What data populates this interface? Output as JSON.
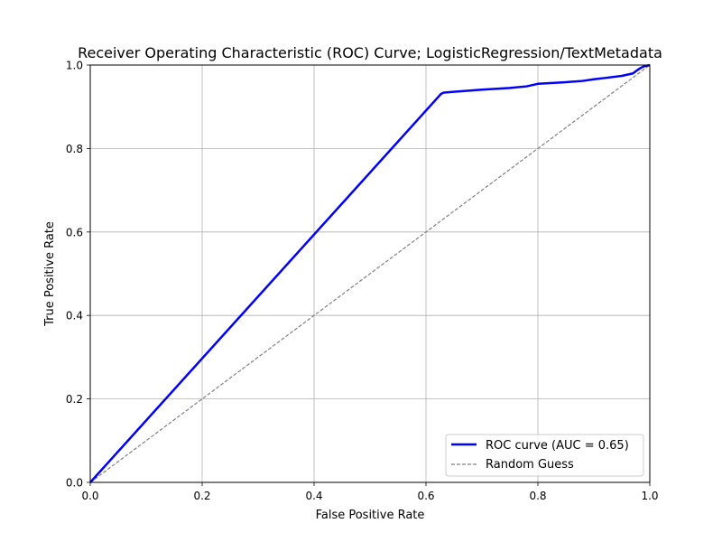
{
  "chart_data": {
    "type": "line",
    "title": "Receiver Operating Characteristic (ROC) Curve; LogisticRegression/TextMetadata",
    "xlabel": "False Positive Rate",
    "ylabel": "True Positive Rate",
    "xlim": [
      0.0,
      1.0
    ],
    "ylim": [
      0.0,
      1.0
    ],
    "xticks": [
      "0.0",
      "0.2",
      "0.4",
      "0.6",
      "0.8",
      "1.0"
    ],
    "yticks": [
      "0.0",
      "0.2",
      "0.4",
      "0.6",
      "0.8",
      "1.0"
    ],
    "grid": true,
    "legend_position": "lower-right",
    "series": [
      {
        "name": "ROC curve (AUC = 0.65)",
        "color": "#0000ff",
        "style": "solid",
        "x": [
          0.0,
          0.627,
          0.632,
          0.66,
          0.7,
          0.75,
          0.78,
          0.8,
          0.85,
          0.88,
          0.9,
          0.92,
          0.95,
          0.97,
          0.975,
          0.98,
          0.985,
          0.99,
          1.0
        ],
        "y": [
          0.0,
          0.931,
          0.934,
          0.937,
          0.941,
          0.945,
          0.949,
          0.955,
          0.959,
          0.962,
          0.966,
          0.969,
          0.974,
          0.98,
          0.985,
          0.99,
          0.994,
          0.997,
          1.0
        ]
      },
      {
        "name": "Random Guess",
        "color": "#808080",
        "style": "dashed",
        "x": [
          0.0,
          1.0
        ],
        "y": [
          0.0,
          1.0
        ]
      }
    ]
  }
}
